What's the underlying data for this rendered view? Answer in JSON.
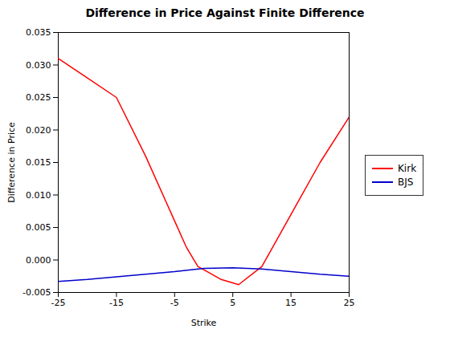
{
  "chart_data": {
    "type": "line",
    "title": "Difference in Price Against Finite Difference",
    "xlabel": "Strike",
    "ylabel": "Difference in Price",
    "series": [
      {
        "name": "Kirk",
        "color": "#ff0000",
        "x": [
          -25,
          -20,
          -15,
          -10,
          -5,
          -3,
          -1,
          0,
          1,
          3,
          6,
          10,
          15,
          20,
          25
        ],
        "values": [
          0.031,
          0.028,
          0.025,
          0.016,
          0.006,
          0.002,
          -0.001,
          -0.0015,
          -0.002,
          -0.003,
          -0.0038,
          -0.001,
          0.007,
          0.015,
          0.022
        ]
      },
      {
        "name": "BJS",
        "color": "#0000cc",
        "x": [
          -25,
          -20,
          -15,
          -10,
          -5,
          0,
          5,
          10,
          15,
          20,
          25
        ],
        "values": [
          -0.0033,
          -0.003,
          -0.0026,
          -0.0022,
          -0.0018,
          -0.0013,
          -0.0012,
          -0.0014,
          -0.0018,
          -0.0022,
          -0.0025
        ]
      }
    ],
    "xlim": [
      -25,
      25
    ],
    "ylim": [
      -0.005,
      0.035
    ],
    "xticks": [
      -25,
      -15,
      -5,
      5,
      15,
      25
    ],
    "yticks": [
      -0.005,
      {
        "value": 0,
        "label": "0.000"
      },
      0.005,
      {
        "value": 0.01,
        "label": "0.010"
      },
      0.015,
      {
        "value": 0.02,
        "label": "0.020"
      },
      0.025,
      {
        "value": 0.03,
        "label": "0.030"
      },
      0.035
    ],
    "grid": false,
    "legend": "right"
  }
}
